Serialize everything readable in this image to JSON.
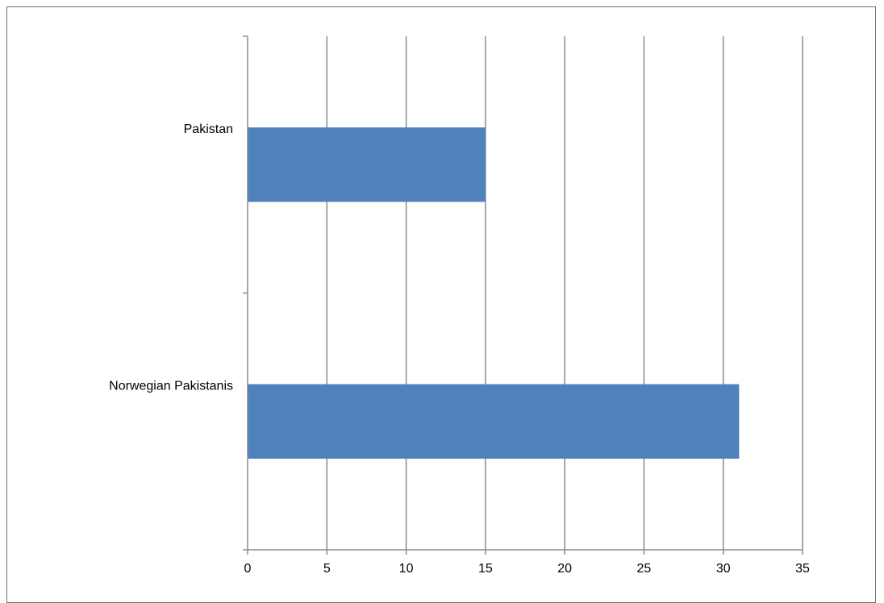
{
  "chart_data": {
    "type": "bar",
    "orientation": "horizontal",
    "categories": [
      "Pakistan",
      "Norwegian Pakistanis"
    ],
    "values": [
      15,
      31
    ],
    "xlim": [
      0,
      35
    ],
    "xticks": [
      0,
      5,
      10,
      15,
      20,
      25,
      30,
      35
    ],
    "title": "",
    "xlabel": "",
    "ylabel": "",
    "grid": true,
    "legend": "none",
    "colors": {
      "bar": "#4f81bd",
      "grid": "#8c8c8c",
      "axis": "#8c8c8c",
      "frame": "#6e6e6e"
    }
  }
}
